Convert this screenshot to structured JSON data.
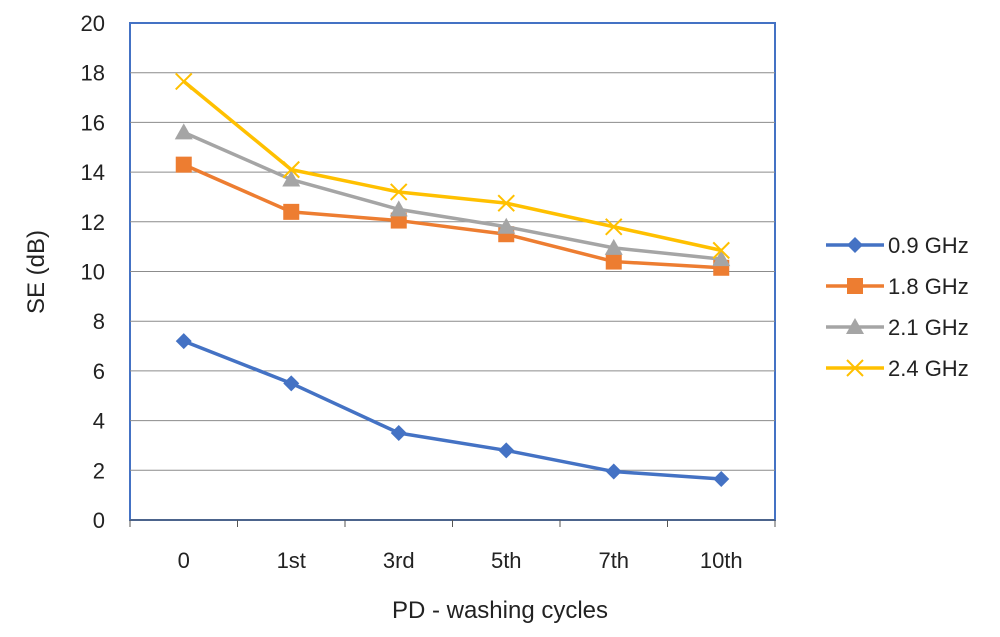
{
  "chart_data": {
    "type": "line",
    "title": "",
    "xlabel": "PD - washing cycles",
    "ylabel": "SE (dB)",
    "categories": [
      "0",
      "1st",
      "3rd",
      "5th",
      "7th",
      "10th"
    ],
    "ylim": [
      0,
      20
    ],
    "yticks": [
      "0",
      "2",
      "4",
      "6",
      "8",
      "10",
      "12",
      "14",
      "16",
      "18",
      "20"
    ],
    "grid": true,
    "legend_position": "right",
    "series": [
      {
        "name": "0.9 GHz",
        "color": "#4472C4",
        "marker": "diamond",
        "values": [
          7.2,
          5.5,
          3.5,
          2.8,
          1.95,
          1.65
        ]
      },
      {
        "name": "1.8 GHz",
        "color": "#ED7D31",
        "marker": "square",
        "values": [
          14.3,
          12.4,
          12.05,
          11.5,
          10.4,
          10.15
        ]
      },
      {
        "name": "2.1 GHz",
        "color": "#A5A5A5",
        "marker": "triangle",
        "values": [
          15.6,
          13.7,
          12.5,
          11.8,
          10.95,
          10.5
        ]
      },
      {
        "name": "2.4 GHz",
        "color": "#FFC000",
        "marker": "x",
        "values": [
          17.65,
          14.1,
          13.2,
          12.75,
          11.8,
          10.85
        ]
      }
    ]
  }
}
